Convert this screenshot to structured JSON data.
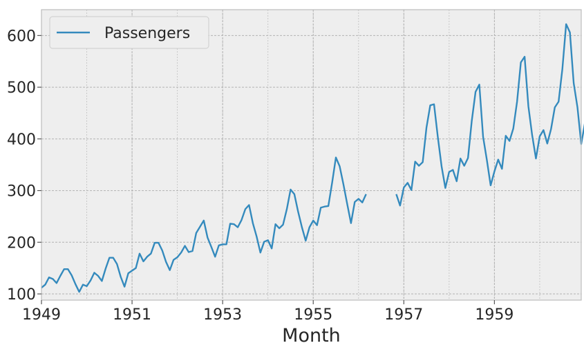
{
  "chart_data": {
    "type": "line",
    "xlabel": "Month",
    "ylabel": "",
    "x_start": "1949-01",
    "xlim": [
      "1949-01",
      "1960-12"
    ],
    "ylim": [
      88,
      650
    ],
    "x_ticks": [
      "1949",
      "1951",
      "1953",
      "1955",
      "1957",
      "1959"
    ],
    "y_ticks": [
      100,
      200,
      300,
      400,
      500,
      600
    ],
    "grid": true,
    "legend": "top-left",
    "series": [
      {
        "name": "Passengers",
        "color": "#348abd",
        "values": [
          112,
          118,
          132,
          129,
          121,
          135,
          148,
          148,
          136,
          119,
          104,
          118,
          115,
          126,
          141,
          135,
          125,
          149,
          170,
          170,
          158,
          133,
          114,
          140,
          145,
          150,
          178,
          163,
          172,
          178,
          199,
          199,
          184,
          162,
          146,
          166,
          171,
          180,
          193,
          181,
          183,
          218,
          230,
          242,
          209,
          191,
          172,
          194,
          196,
          196,
          236,
          235,
          229,
          243,
          264,
          272,
          237,
          211,
          180,
          201,
          204,
          188,
          235,
          227,
          234,
          264,
          302,
          293,
          259,
          229,
          203,
          229,
          242,
          233,
          267,
          269,
          270,
          315,
          364,
          347,
          312,
          274,
          237,
          278,
          284,
          277,
          293,
          null,
          null,
          null,
          null,
          null,
          null,
          null,
          293,
          271,
          306,
          315,
          301,
          356,
          348,
          355,
          422,
          465,
          467,
          404,
          347,
          305,
          336,
          340,
          318,
          362,
          348,
          363,
          435,
          491,
          505,
          404,
          359,
          310,
          337,
          360,
          342,
          406,
          396,
          420,
          472,
          548,
          559,
          463,
          407,
          362,
          405,
          417,
          391,
          419,
          461,
          472,
          535,
          622,
          606,
          508,
          461,
          390,
          432
        ]
      }
    ]
  }
}
